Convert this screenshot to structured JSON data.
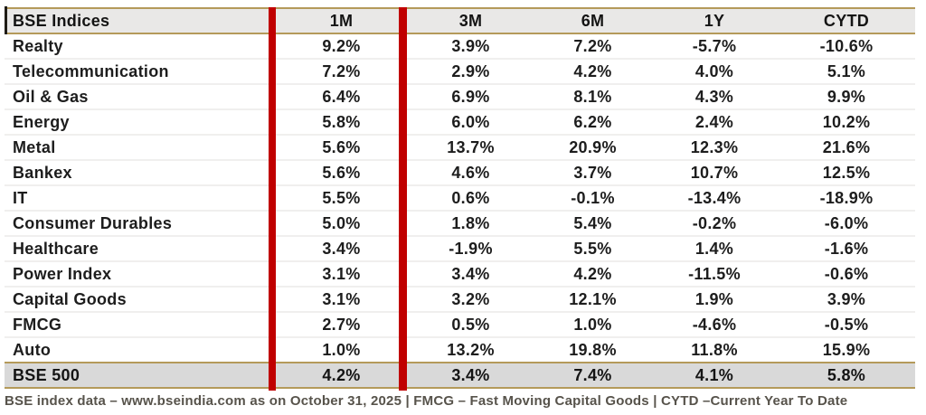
{
  "table": {
    "title_column": "BSE Indices",
    "period_columns": [
      "1M",
      "3M",
      "6M",
      "1Y",
      "CYTD"
    ],
    "rows": [
      {
        "label": "Realty",
        "values": [
          "9.2%",
          "3.9%",
          "7.2%",
          "-5.7%",
          "-10.6%"
        ]
      },
      {
        "label": "Telecommunication",
        "values": [
          "7.2%",
          "2.9%",
          "4.2%",
          "4.0%",
          "5.1%"
        ]
      },
      {
        "label": "Oil & Gas",
        "values": [
          "6.4%",
          "6.9%",
          "8.1%",
          "4.3%",
          "9.9%"
        ]
      },
      {
        "label": "Energy",
        "values": [
          "5.8%",
          "6.0%",
          "6.2%",
          "2.4%",
          "10.2%"
        ]
      },
      {
        "label": "Metal",
        "values": [
          "5.6%",
          "13.7%",
          "20.9%",
          "12.3%",
          "21.6%"
        ]
      },
      {
        "label": "Bankex",
        "values": [
          "5.6%",
          "4.6%",
          "3.7%",
          "10.7%",
          "12.5%"
        ]
      },
      {
        "label": "IT",
        "values": [
          "5.5%",
          "0.6%",
          "-0.1%",
          "-13.4%",
          "-18.9%"
        ]
      },
      {
        "label": "Consumer Durables",
        "values": [
          "5.0%",
          "1.8%",
          "5.4%",
          "-0.2%",
          "-6.0%"
        ]
      },
      {
        "label": "Healthcare",
        "values": [
          "3.4%",
          "-1.9%",
          "5.5%",
          "1.4%",
          "-1.6%"
        ]
      },
      {
        "label": "Power Index",
        "values": [
          "3.1%",
          "3.4%",
          "4.2%",
          "-11.5%",
          "-0.6%"
        ]
      },
      {
        "label": "Capital Goods",
        "values": [
          "3.1%",
          "3.2%",
          "12.1%",
          "1.9%",
          "3.9%"
        ]
      },
      {
        "label": "FMCG",
        "values": [
          "2.7%",
          "0.5%",
          "1.0%",
          "-4.6%",
          "-0.5%"
        ]
      },
      {
        "label": "Auto",
        "values": [
          "1.0%",
          "13.2%",
          "19.8%",
          "11.8%",
          "15.9%"
        ]
      }
    ],
    "total_row": {
      "label": "BSE 500",
      "values": [
        "4.2%",
        "3.4%",
        "7.4%",
        "4.1%",
        "5.8%"
      ]
    }
  },
  "footnote": {
    "text": "BSE index data – www.bseindia.com as on October 31, 2025 | FMCG – Fast Moving Capital Goods | CYTD –Current Year To Date"
  },
  "colors": {
    "accent_red": "#c00000",
    "border_gold": "#b49a5a",
    "header_bg": "#e9e8e7",
    "total_row_bg": "#d9d9d9",
    "row_separator": "#f0efee",
    "footnote_text": "#57534b"
  },
  "chart_data": {
    "type": "table",
    "title": "BSE Indices",
    "columns": [
      "1M",
      "3M",
      "6M",
      "1Y",
      "CYTD"
    ],
    "unit": "%",
    "categories": [
      "Realty",
      "Telecommunication",
      "Oil & Gas",
      "Energy",
      "Metal",
      "Bankex",
      "IT",
      "Consumer Durables",
      "Healthcare",
      "Power Index",
      "Capital Goods",
      "FMCG",
      "Auto",
      "BSE 500"
    ],
    "values_pct": [
      [
        9.2,
        3.9,
        7.2,
        -5.7,
        -10.6
      ],
      [
        7.2,
        2.9,
        4.2,
        4.0,
        5.1
      ],
      [
        6.4,
        6.9,
        8.1,
        4.3,
        9.9
      ],
      [
        5.8,
        6.0,
        6.2,
        2.4,
        10.2
      ],
      [
        5.6,
        13.7,
        20.9,
        12.3,
        21.6
      ],
      [
        5.6,
        4.6,
        3.7,
        10.7,
        12.5
      ],
      [
        5.5,
        0.6,
        -0.1,
        -13.4,
        -18.9
      ],
      [
        5.0,
        1.8,
        5.4,
        -0.2,
        -6.0
      ],
      [
        3.4,
        -1.9,
        5.5,
        1.4,
        -1.6
      ],
      [
        3.1,
        3.4,
        4.2,
        -11.5,
        -0.6
      ],
      [
        3.1,
        3.2,
        12.1,
        1.9,
        3.9
      ],
      [
        2.7,
        0.5,
        1.0,
        -4.6,
        -0.5
      ],
      [
        1.0,
        13.2,
        19.8,
        11.8,
        15.9
      ],
      [
        4.2,
        3.4,
        7.4,
        4.1,
        5.8
      ]
    ],
    "notes": "Red vertical divider bars after the index-name column and after the 1M column; BSE 500 total row shaded gray; gold top/bottom rules on header and total row."
  }
}
